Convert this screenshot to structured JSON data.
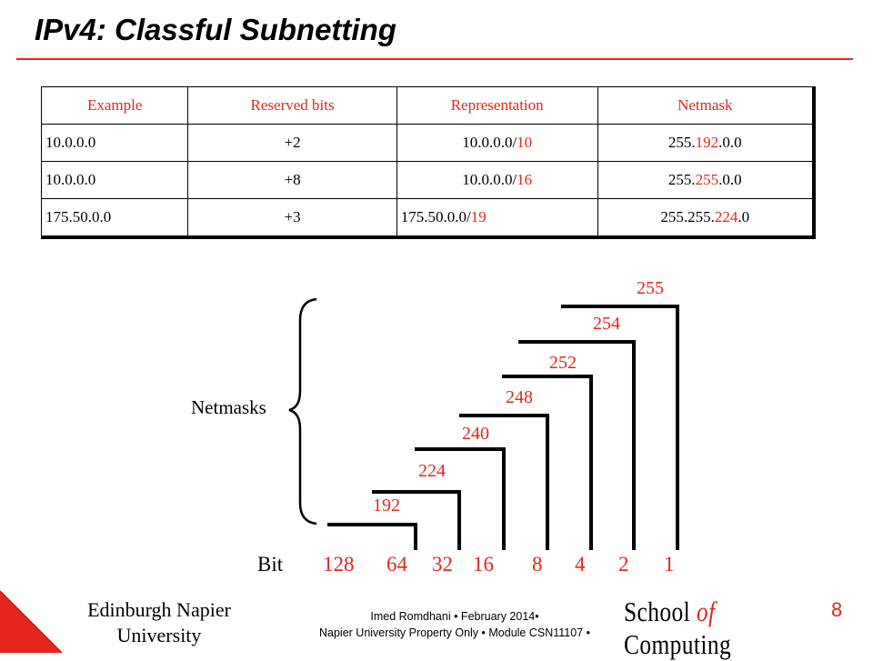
{
  "slide": {
    "title": "IPv4: Classful Subnetting",
    "page_number": "8"
  },
  "table": {
    "headers": [
      "Example",
      "Reserved bits",
      "Representation",
      "Netmask"
    ],
    "rows": [
      {
        "example": "10.0.0.0",
        "reserved": "+2",
        "rep_base": "10.0.0.0/",
        "rep_prefix": "10",
        "mask_pre": "255.",
        "mask_red": "192",
        "mask_post": ".0.0"
      },
      {
        "example": "10.0.0.0",
        "reserved": "+8",
        "rep_base": "10.0.0.0/",
        "rep_prefix": "16",
        "mask_pre": "255.",
        "mask_red": "255",
        "mask_post": ".0.0"
      },
      {
        "example": "175.50.0.0",
        "reserved": "+3",
        "rep_base": "175.50.0.0/",
        "rep_prefix": "19",
        "mask_pre": "255.255.",
        "mask_red": "224",
        "mask_post": ".0"
      }
    ]
  },
  "diagram": {
    "group_label": "Netmasks",
    "bit_label": "Bit",
    "bits": [
      "128",
      "64",
      "32",
      "16",
      "8",
      "4",
      "2",
      "1"
    ],
    "masks": [
      "192",
      "224",
      "240",
      "248",
      "252",
      "254",
      "255"
    ]
  },
  "footer": {
    "university_line1": "Edinburgh Napier",
    "university_line2": "University",
    "credit_line1": "Imed Romdhani • February 2014•",
    "credit_line2": "Napier University Property Only • Module CSN11107 •",
    "school_pre": "School ",
    "school_of": "of",
    "school_post": " Computing"
  },
  "colors": {
    "accent": "#e5251c",
    "text": "#000000"
  }
}
